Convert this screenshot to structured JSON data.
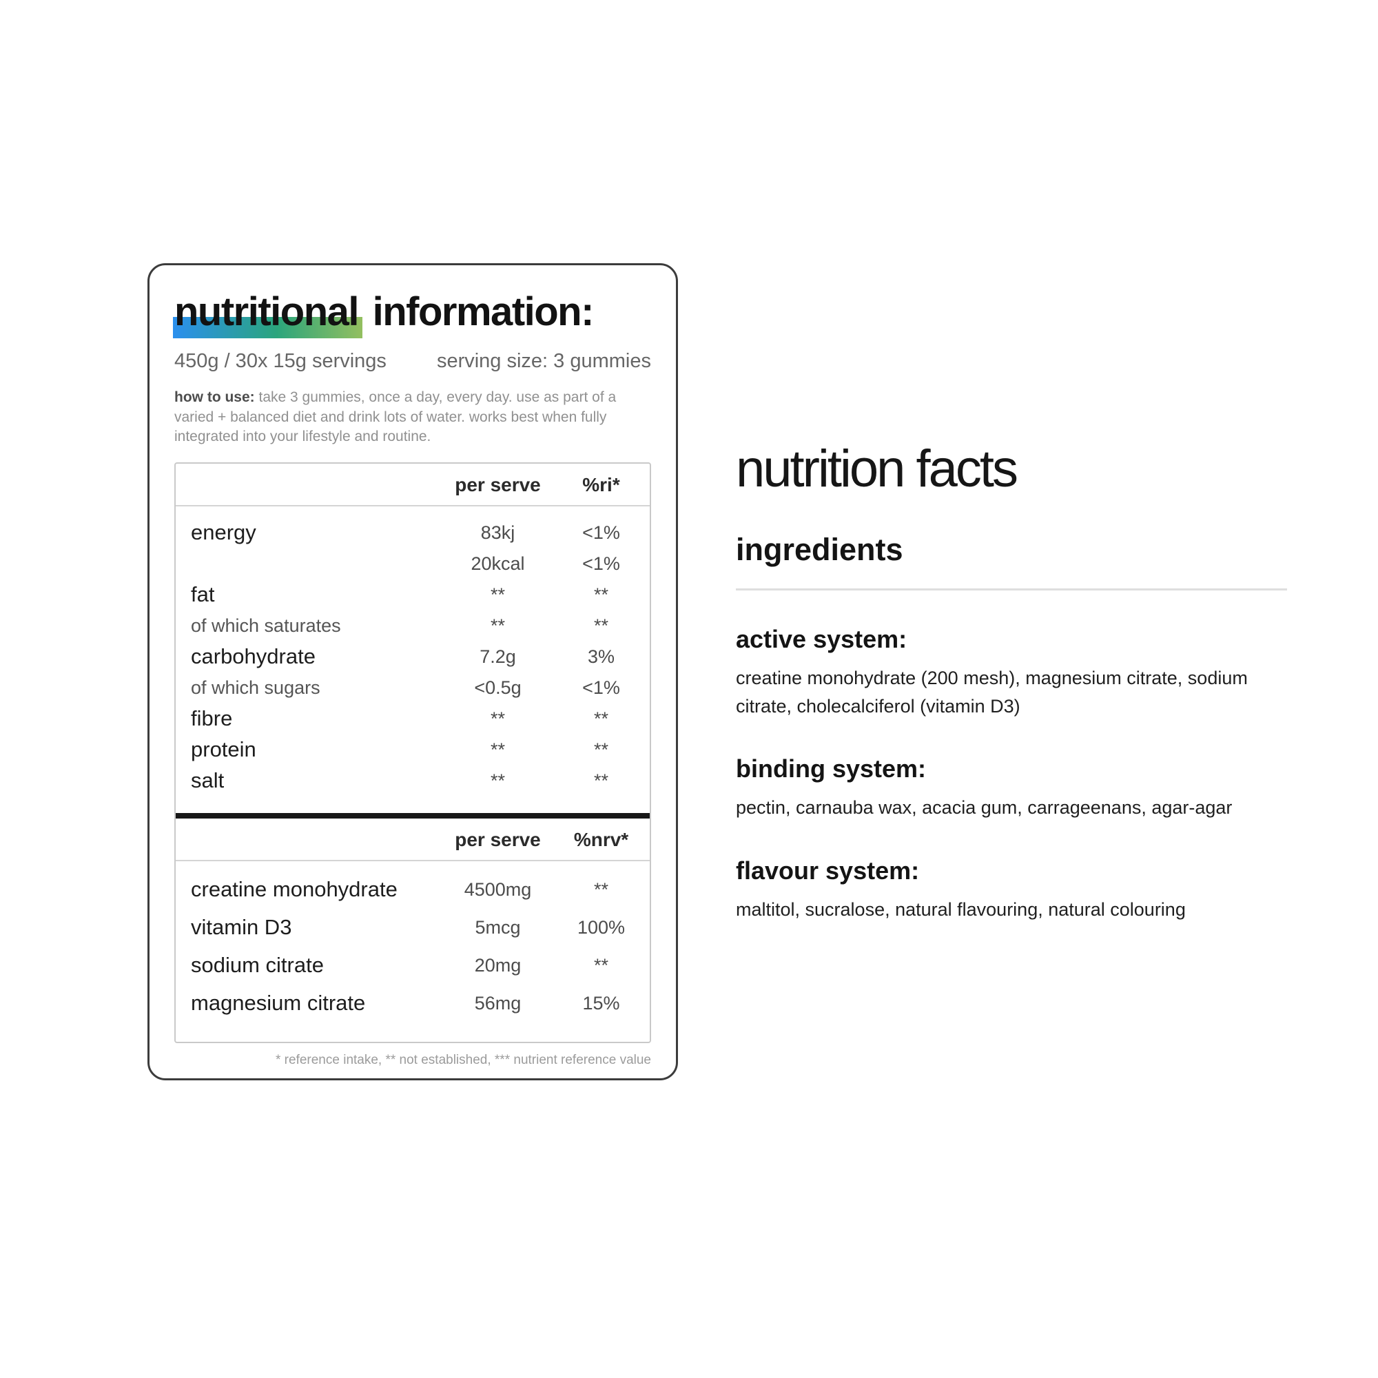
{
  "label_card": {
    "title_highlight": "nutritional",
    "title_rest": " information:",
    "highlight_colors": [
      "#2b8fee",
      "#2ba57c",
      "#93bf5f"
    ],
    "pack_info": "450g / 30x 15g servings",
    "serving_size": "serving size: 3 gummies",
    "how_to_use_label": "how to use:",
    "how_to_use_text": "take 3 gummies, once a day, every day. use as part of a varied + balanced diet and drink lots of water. works best when fully integrated into your lifestyle and routine.",
    "table1": {
      "col1_header": "per serve",
      "col2_header": "%ri*",
      "rows": [
        {
          "label": "energy",
          "v1": "83kj",
          "v2": "<1%"
        },
        {
          "label": "",
          "v1": "20kcal",
          "v2": "<1%"
        },
        {
          "label": "fat",
          "v1": "**",
          "v2": "**"
        },
        {
          "label": "of which saturates",
          "v1": "**",
          "v2": "**"
        },
        {
          "label": "carbohydrate",
          "v1": "7.2g",
          "v2": "3%"
        },
        {
          "label": "of which sugars",
          "v1": "<0.5g",
          "v2": "<1%"
        },
        {
          "label": "fibre",
          "v1": "**",
          "v2": "**"
        },
        {
          "label": "protein",
          "v1": "**",
          "v2": "**"
        },
        {
          "label": "salt",
          "v1": "**",
          "v2": "**"
        }
      ]
    },
    "table2": {
      "col1_header": "per serve",
      "col2_header": "%nrv*",
      "rows": [
        {
          "label": "creatine monohydrate",
          "v1": "4500mg",
          "v2": "**"
        },
        {
          "label": "vitamin D3",
          "v1": "5mcg",
          "v2": "100%"
        },
        {
          "label": "sodium citrate",
          "v1": "20mg",
          "v2": "**"
        },
        {
          "label": "magnesium citrate",
          "v1": "56mg",
          "v2": "15%"
        }
      ]
    },
    "footnote": "* reference intake, ** not established, *** nutrient reference value"
  },
  "facts": {
    "title": "nutrition facts",
    "ingredients_heading": "ingredients",
    "sections": [
      {
        "heading": "active system:",
        "body": "creatine monohydrate (200 mesh), magnesium citrate, sodium citrate, cholecalciferol (vitamin D3)"
      },
      {
        "heading": "binding system:",
        "body": "pectin, carnauba wax, acacia gum, carrageenans, agar-agar"
      },
      {
        "heading": "flavour system:",
        "body": "maltitol, sucralose, natural flavouring, natural colouring"
      }
    ]
  }
}
